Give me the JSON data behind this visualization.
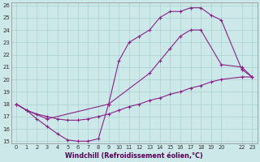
{
  "background_color": "#cce8e8",
  "line_color": "#882288",
  "grid_color": "#aad0d0",
  "xlabel": "Windchill (Refroidissement éolien,°C)",
  "xlim": [
    -0.5,
    23.5
  ],
  "ylim": [
    14.8,
    26.2
  ],
  "yticks": [
    15,
    16,
    17,
    18,
    19,
    20,
    21,
    22,
    23,
    24,
    25,
    26
  ],
  "xticks": [
    0,
    1,
    2,
    3,
    4,
    5,
    6,
    7,
    8,
    9,
    10,
    11,
    12,
    13,
    14,
    15,
    16,
    17,
    18,
    19,
    20,
    22,
    23
  ],
  "line1_x": [
    0,
    1,
    2,
    3,
    4,
    5,
    6,
    7,
    8,
    9,
    10,
    11,
    12,
    13,
    14,
    15,
    16,
    17,
    18,
    19,
    20,
    22,
    23
  ],
  "line1_y": [
    18.0,
    17.5,
    17.2,
    17.0,
    16.8,
    16.7,
    16.7,
    16.8,
    17.0,
    17.2,
    17.5,
    17.8,
    18.0,
    18.3,
    18.5,
    18.8,
    19.0,
    19.3,
    19.5,
    19.8,
    20.0,
    20.2,
    20.2
  ],
  "line2_x": [
    0,
    1,
    2,
    3,
    4,
    5,
    6,
    7,
    8,
    9,
    10,
    11,
    12,
    13,
    14,
    15,
    16,
    17,
    18,
    19,
    20,
    22,
    23
  ],
  "line2_y": [
    18.0,
    17.5,
    16.8,
    16.2,
    15.6,
    15.1,
    15.0,
    15.0,
    15.2,
    18.0,
    21.5,
    23.0,
    23.5,
    24.0,
    25.0,
    25.5,
    25.5,
    25.8,
    25.8,
    25.2,
    24.8,
    20.8,
    20.2
  ],
  "line3_x": [
    0,
    1,
    3,
    9,
    13,
    14,
    15,
    16,
    17,
    18,
    20,
    22,
    23
  ],
  "line3_y": [
    18.0,
    17.5,
    16.8,
    18.0,
    20.5,
    21.5,
    22.5,
    23.5,
    24.0,
    24.0,
    21.2,
    21.0,
    20.2
  ]
}
